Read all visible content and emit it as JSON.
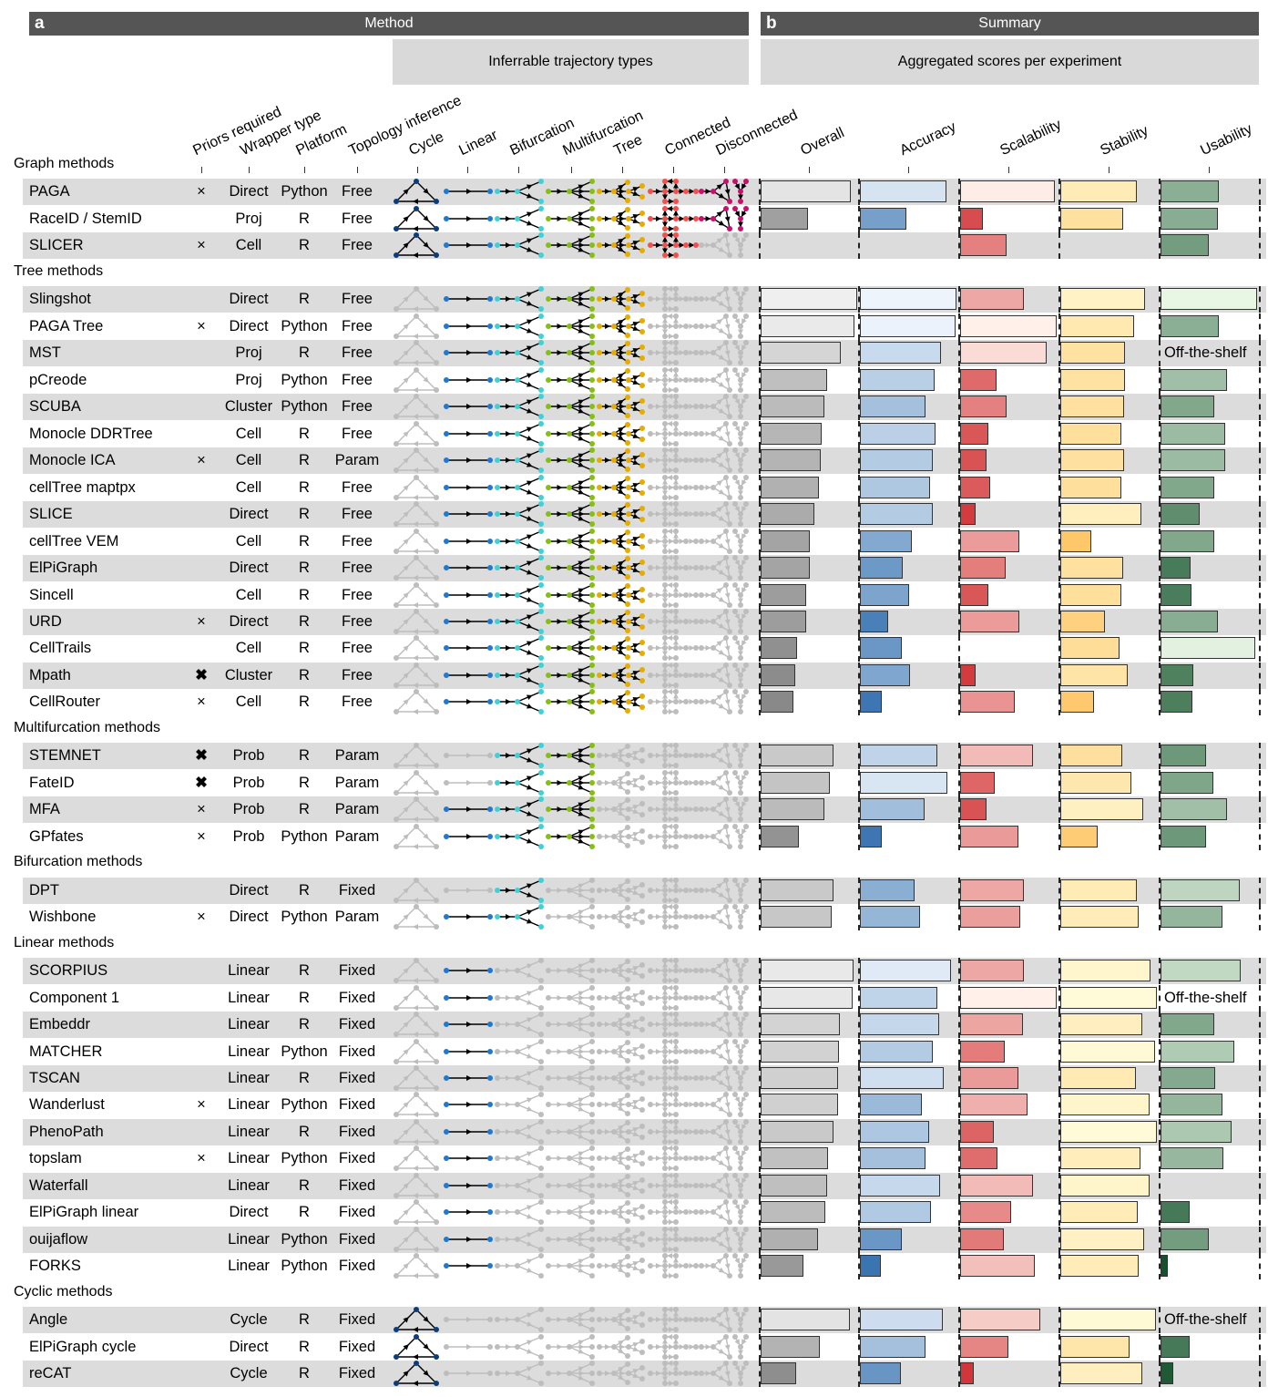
{
  "panel_a": {
    "letter": "a",
    "title": "Method",
    "subheader": "Inferrable trajectory types"
  },
  "panel_b": {
    "letter": "b",
    "title": "Summary",
    "subheader": "Aggregated scores per experiment"
  },
  "columns": {
    "priors": "Priors required",
    "wrapper": "Wrapper type",
    "platform": "Platform",
    "topology": "Topology inference",
    "cycle": "Cycle",
    "linear": "Linear",
    "bifurcation": "Bifurcation",
    "multifurcation": "Multifurcation",
    "tree": "Tree",
    "connected": "Connected",
    "disconnected": "Disconnected",
    "overall": "Overall",
    "accuracy": "Accuracy",
    "scalability": "Scalability",
    "stability": "Stability",
    "usability": "Usability"
  },
  "colors": {
    "cycle": "#0b3d7a",
    "linear": "#1f78d1",
    "bifurcation": "#40d0d6",
    "multifurcation": "#86bf14",
    "tree": "#e6ac00",
    "connected": "#f2504a",
    "disconnected": "#c8106e",
    "inactive": "#bdbdbd"
  },
  "chart_data": {
    "type": "table",
    "score_columns": [
      "overall",
      "accuracy",
      "scalability",
      "stability",
      "usability"
    ],
    "value_range": [
      0,
      1
    ],
    "groups": [
      {
        "name": "Graph methods",
        "methods": [
          {
            "name": "PAGA",
            "priors": "×",
            "wrapper": "Direct",
            "platform": "Python",
            "topology": "Free",
            "types": [
              "cycle",
              "linear",
              "bifurcation",
              "multifurcation",
              "tree",
              "connected",
              "disconnected"
            ],
            "scores": [
              0.93,
              0.9,
              0.98,
              0.79,
              0.6
            ]
          },
          {
            "name": "RaceID / StemID",
            "priors": "",
            "wrapper": "Proj",
            "platform": "R",
            "topology": "Free",
            "types": [
              "cycle",
              "linear",
              "bifurcation",
              "multifurcation",
              "tree",
              "connected",
              "disconnected"
            ],
            "scores": [
              0.49,
              0.48,
              0.24,
              0.65,
              0.59
            ]
          },
          {
            "name": "SLICER",
            "priors": "×",
            "wrapper": "Cell",
            "platform": "R",
            "topology": "Free",
            "types": [
              "cycle",
              "linear",
              "bifurcation",
              "multifurcation",
              "tree",
              "connected"
            ],
            "scores": [
              null,
              null,
              0.48,
              null,
              0.5
            ]
          }
        ]
      },
      {
        "name": "Tree methods",
        "methods": [
          {
            "name": "Slingshot",
            "priors": "",
            "wrapper": "Direct",
            "platform": "R",
            "topology": "Free",
            "types": [
              "linear",
              "bifurcation",
              "multifurcation",
              "tree"
            ],
            "scores": [
              1.0,
              1.0,
              0.66,
              0.88,
              1.0
            ]
          },
          {
            "name": "PAGA Tree",
            "priors": "×",
            "wrapper": "Direct",
            "platform": "Python",
            "topology": "Free",
            "types": [
              "linear",
              "bifurcation",
              "multifurcation",
              "tree"
            ],
            "scores": [
              0.97,
              0.99,
              1.0,
              0.76,
              0.6
            ]
          },
          {
            "name": "MST",
            "priors": "",
            "wrapper": "Proj",
            "platform": "R",
            "topology": "Free",
            "types": [
              "linear",
              "bifurcation",
              "multifurcation",
              "tree"
            ],
            "scores": [
              0.83,
              0.84,
              0.9,
              0.67,
              "Off-the-shelf"
            ]
          },
          {
            "name": "pCreode",
            "priors": "",
            "wrapper": "Proj",
            "platform": "Python",
            "topology": "Free",
            "types": [
              "linear",
              "bifurcation",
              "multifurcation",
              "tree"
            ],
            "scores": [
              0.69,
              0.77,
              0.38,
              0.67,
              0.69
            ]
          },
          {
            "name": "SCUBA",
            "priors": "",
            "wrapper": "Cluster",
            "platform": "Python",
            "topology": "Free",
            "types": [
              "linear",
              "bifurcation",
              "multifurcation",
              "tree"
            ],
            "scores": [
              0.66,
              0.68,
              0.48,
              0.66,
              0.56
            ]
          },
          {
            "name": "Monocle DDRTree",
            "priors": "",
            "wrapper": "Cell",
            "platform": "R",
            "topology": "Free",
            "types": [
              "linear",
              "bifurcation",
              "multifurcation",
              "tree"
            ],
            "scores": [
              0.63,
              0.78,
              0.29,
              0.63,
              0.67
            ]
          },
          {
            "name": "Monocle ICA",
            "priors": "×",
            "wrapper": "Cell",
            "platform": "R",
            "topology": "Param",
            "types": [
              "linear",
              "bifurcation",
              "multifurcation",
              "tree"
            ],
            "scores": [
              0.62,
              0.75,
              0.27,
              0.66,
              0.67
            ]
          },
          {
            "name": "cellTree maptpx",
            "priors": "",
            "wrapper": "Cell",
            "platform": "R",
            "topology": "Free",
            "types": [
              "linear",
              "bifurcation",
              "multifurcation",
              "tree"
            ],
            "scores": [
              0.6,
              0.73,
              0.31,
              0.63,
              0.56
            ]
          },
          {
            "name": "SLICE",
            "priors": "",
            "wrapper": "Direct",
            "platform": "R",
            "topology": "Free",
            "types": [
              "linear",
              "bifurcation",
              "multifurcation",
              "tree"
            ],
            "scores": [
              0.56,
              0.75,
              0.16,
              0.84,
              0.41
            ]
          },
          {
            "name": "cellTree VEM",
            "priors": "",
            "wrapper": "Cell",
            "platform": "R",
            "topology": "Free",
            "types": [
              "linear",
              "bifurcation",
              "multifurcation",
              "tree"
            ],
            "scores": [
              0.51,
              0.54,
              0.61,
              0.32,
              0.56
            ]
          },
          {
            "name": "ElPiGraph",
            "priors": "",
            "wrapper": "Direct",
            "platform": "R",
            "topology": "Free",
            "types": [
              "linear",
              "bifurcation",
              "multifurcation",
              "tree"
            ],
            "scores": [
              0.51,
              0.44,
              0.47,
              0.65,
              0.31
            ]
          },
          {
            "name": "Sincell",
            "priors": "",
            "wrapper": "Cell",
            "platform": "R",
            "topology": "Free",
            "types": [
              "linear",
              "bifurcation",
              "multifurcation",
              "tree"
            ],
            "scores": [
              0.47,
              0.51,
              0.29,
              0.63,
              0.32
            ]
          },
          {
            "name": "URD",
            "priors": "×",
            "wrapper": "Direct",
            "platform": "R",
            "topology": "Free",
            "types": [
              "linear",
              "bifurcation",
              "multifurcation",
              "tree"
            ],
            "scores": [
              0.47,
              0.29,
              0.61,
              0.46,
              0.59
            ]
          },
          {
            "name": "CellTrails",
            "priors": "",
            "wrapper": "Cell",
            "platform": "R",
            "topology": "Free",
            "types": [
              "linear",
              "bifurcation",
              "multifurcation",
              "tree"
            ],
            "scores": [
              0.38,
              0.43,
              null,
              0.61,
              0.98
            ]
          },
          {
            "name": "Mpath",
            "priors": "✖",
            "wrapper": "Cluster",
            "platform": "R",
            "topology": "Free",
            "types": [
              "linear",
              "bifurcation",
              "multifurcation",
              "tree"
            ],
            "scores": [
              0.36,
              0.52,
              0.16,
              0.7,
              0.34
            ]
          },
          {
            "name": "CellRouter",
            "priors": "×",
            "wrapper": "Cell",
            "platform": "R",
            "topology": "Free",
            "types": [
              "linear",
              "bifurcation",
              "multifurcation",
              "tree"
            ],
            "scores": [
              0.34,
              0.23,
              0.57,
              0.35,
              0.33
            ]
          }
        ]
      },
      {
        "name": "Multifurcation methods",
        "methods": [
          {
            "name": "STEMNET",
            "priors": "✖",
            "wrapper": "Prob",
            "platform": "R",
            "topology": "Param",
            "types": [
              "bifurcation",
              "multifurcation"
            ],
            "scores": [
              0.75,
              0.8,
              0.75,
              0.64,
              0.47
            ]
          },
          {
            "name": "FateID",
            "priors": "✖",
            "wrapper": "Prob",
            "platform": "R",
            "topology": "Param",
            "types": [
              "bifurcation",
              "multifurcation"
            ],
            "scores": [
              0.72,
              0.91,
              0.36,
              0.74,
              0.55
            ]
          },
          {
            "name": "MFA",
            "priors": "×",
            "wrapper": "Prob",
            "platform": "R",
            "topology": "Param",
            "types": [
              "linear",
              "bifurcation",
              "multifurcation"
            ],
            "scores": [
              0.66,
              0.67,
              0.27,
              0.86,
              0.69
            ]
          },
          {
            "name": "GPfates",
            "priors": "×",
            "wrapper": "Prob",
            "platform": "Python",
            "topology": "Param",
            "types": [
              "linear",
              "bifurcation",
              "multifurcation"
            ],
            "scores": [
              0.4,
              0.23,
              0.6,
              0.39,
              0.47
            ]
          }
        ]
      },
      {
        "name": "Bifurcation methods",
        "methods": [
          {
            "name": "DPT",
            "priors": "",
            "wrapper": "Direct",
            "platform": "R",
            "topology": "Fixed",
            "types": [
              "bifurcation"
            ],
            "scores": [
              0.75,
              0.57,
              0.66,
              0.79,
              0.82
            ]
          },
          {
            "name": "Wishbone",
            "priors": "×",
            "wrapper": "Direct",
            "platform": "Python",
            "topology": "Param",
            "types": [
              "linear",
              "bifurcation"
            ],
            "scores": [
              0.74,
              0.62,
              0.62,
              0.81,
              0.64
            ]
          }
        ]
      },
      {
        "name": "Linear methods",
        "methods": [
          {
            "name": "SCORPIUS",
            "priors": "",
            "wrapper": "Linear",
            "platform": "R",
            "topology": "Fixed",
            "types": [
              "linear"
            ],
            "scores": [
              0.96,
              0.94,
              0.66,
              0.93,
              0.83
            ]
          },
          {
            "name": "Component 1",
            "priors": "",
            "wrapper": "Linear",
            "platform": "R",
            "topology": "Fixed",
            "types": [
              "linear"
            ],
            "scores": [
              0.95,
              0.8,
              1.0,
              1.0,
              "Off-the-shelf"
            ]
          },
          {
            "name": "Embeddr",
            "priors": "",
            "wrapper": "Linear",
            "platform": "R",
            "topology": "Fixed",
            "types": [
              "linear"
            ],
            "scores": [
              0.82,
              0.82,
              0.65,
              0.85,
              0.56
            ]
          },
          {
            "name": "MATCHER",
            "priors": "",
            "wrapper": "Linear",
            "platform": "Python",
            "topology": "Fixed",
            "types": [
              "linear"
            ],
            "scores": [
              0.81,
              0.75,
              0.46,
              0.98,
              0.76
            ]
          },
          {
            "name": "TSCAN",
            "priors": "",
            "wrapper": "Linear",
            "platform": "R",
            "topology": "Fixed",
            "types": [
              "linear"
            ],
            "scores": [
              0.8,
              0.87,
              0.6,
              0.78,
              0.57
            ]
          },
          {
            "name": "Wanderlust",
            "priors": "×",
            "wrapper": "Linear",
            "platform": "Python",
            "topology": "Fixed",
            "types": [
              "linear"
            ],
            "scores": [
              0.8,
              0.64,
              0.7,
              0.92,
              0.64
            ]
          },
          {
            "name": "PhenoPath",
            "priors": "",
            "wrapper": "Linear",
            "platform": "R",
            "topology": "Fixed",
            "types": [
              "linear"
            ],
            "scores": [
              0.75,
              0.72,
              0.35,
              1.0,
              0.74
            ]
          },
          {
            "name": "topslam",
            "priors": "×",
            "wrapper": "Linear",
            "platform": "Python",
            "topology": "Fixed",
            "types": [
              "linear"
            ],
            "scores": [
              0.7,
              0.68,
              0.39,
              0.83,
              0.65
            ]
          },
          {
            "name": "Waterfall",
            "priors": "",
            "wrapper": "Linear",
            "platform": "R",
            "topology": "Fixed",
            "types": [
              "linear"
            ],
            "scores": [
              0.69,
              0.83,
              0.75,
              0.92,
              null
            ]
          },
          {
            "name": "ElPiGraph linear",
            "priors": "",
            "wrapper": "Direct",
            "platform": "R",
            "topology": "Fixed",
            "types": [
              "linear"
            ],
            "scores": [
              0.67,
              0.74,
              0.53,
              0.8,
              0.3
            ]
          },
          {
            "name": "ouijaflow",
            "priors": "",
            "wrapper": "Linear",
            "platform": "Python",
            "topology": "Fixed",
            "types": [
              "linear"
            ],
            "scores": [
              0.59,
              0.43,
              0.45,
              0.87,
              0.5
            ]
          },
          {
            "name": "FORKS",
            "priors": "",
            "wrapper": "Linear",
            "platform": "Python",
            "topology": "Fixed",
            "types": [
              "linear"
            ],
            "scores": [
              0.44,
              0.22,
              0.77,
              0.81,
              0.08
            ]
          }
        ]
      },
      {
        "name": "Cyclic methods",
        "methods": [
          {
            "name": "Angle",
            "priors": "",
            "wrapper": "Cycle",
            "platform": "R",
            "topology": "Fixed",
            "types": [
              "cycle"
            ],
            "scores": [
              0.92,
              0.86,
              0.83,
              0.99,
              "Off-the-shelf"
            ]
          },
          {
            "name": "ElPiGraph cycle",
            "priors": "",
            "wrapper": "Direct",
            "platform": "R",
            "topology": "Fixed",
            "types": [
              "cycle"
            ],
            "scores": [
              0.61,
              0.68,
              0.5,
              0.72,
              0.3
            ]
          },
          {
            "name": "reCAT",
            "priors": "",
            "wrapper": "Cycle",
            "platform": "R",
            "topology": "Fixed",
            "types": [
              "cycle"
            ],
            "scores": [
              0.37,
              0.42,
              0.14,
              0.85,
              0.13
            ]
          }
        ]
      }
    ]
  }
}
